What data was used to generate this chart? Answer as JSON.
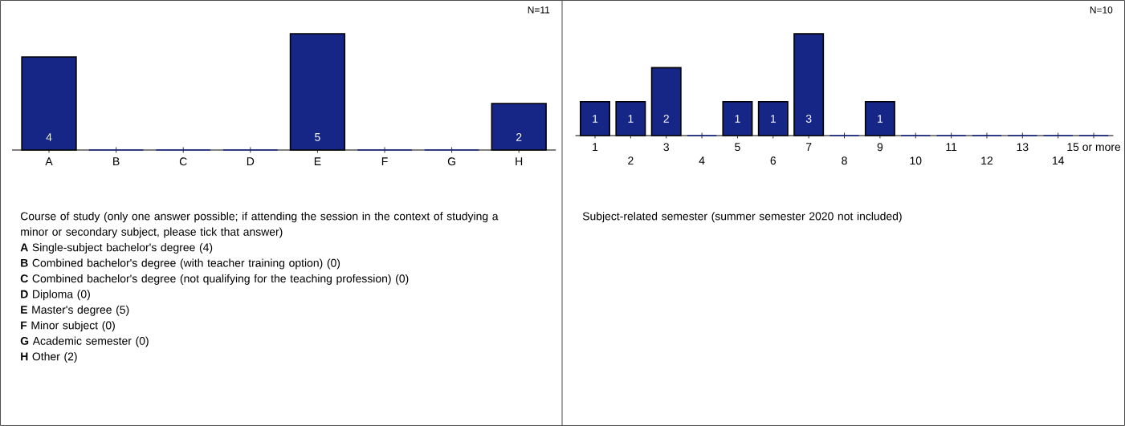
{
  "chart_data": [
    {
      "type": "bar",
      "title": "Course of study (only one answer possible; if attending the session in the context of studying a minor or secondary subject, please tick that answer)",
      "categories": [
        "A",
        "B",
        "C",
        "D",
        "E",
        "F",
        "G",
        "H"
      ],
      "values": [
        4,
        0,
        0,
        0,
        5,
        0,
        0,
        2
      ],
      "color": "#152687",
      "value_labels": [
        "4",
        null,
        null,
        null,
        "5",
        null,
        null,
        "2"
      ],
      "annotations": [
        "N=11",
        "**A** Single-subject bachelor's degree (4)",
        "**B** Combined bachelor's degree (with teacher training option) (0)",
        "**C** Combined bachelor's degree (not qualifying for the teaching profession) (0)",
        "**D** Diploma (0)",
        "**E** Master's degree (5)",
        "**F** Minor subject (0)",
        "**G** Academic semester (0)",
        "**H** Other (2)"
      ]
    },
    {
      "type": "bar",
      "title": "Subject-related semester (summer semester 2020 not included)",
      "categories": [
        "1",
        "2",
        "3",
        "4",
        "5",
        "6",
        "7",
        "8",
        "9",
        "10",
        "11",
        "12",
        "13",
        "14",
        "15 or more"
      ],
      "values": [
        1,
        1,
        2,
        0,
        1,
        1,
        3,
        0,
        1,
        0,
        0,
        0,
        0,
        0,
        0
      ],
      "color": "#152687",
      "value_labels": [
        "1",
        "1",
        "2",
        null,
        "1",
        "1",
        "3",
        null,
        "1",
        null,
        null,
        null,
        null,
        null,
        null
      ],
      "annotations": [
        "N=10"
      ]
    }
  ]
}
